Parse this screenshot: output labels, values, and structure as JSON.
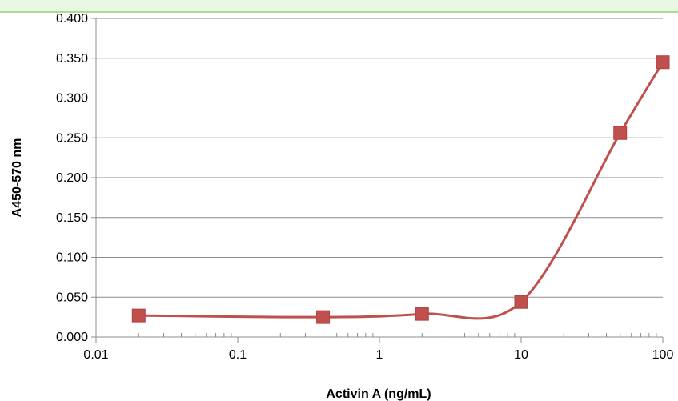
{
  "chart_data": {
    "type": "line",
    "title": "",
    "xlabel": "Activin A (ng/mL)",
    "ylabel": "A450-570 nm",
    "x_scale": "log",
    "xlim": [
      0.01,
      100
    ],
    "ylim": [
      0,
      0.4
    ],
    "grid": "horizontal",
    "legend": "none",
    "x_ticks": [
      {
        "value": 0.01,
        "label": "0.01"
      },
      {
        "value": 0.1,
        "label": "0.1"
      },
      {
        "value": 1,
        "label": "1"
      },
      {
        "value": 10,
        "label": "10"
      },
      {
        "value": 100,
        "label": "100"
      }
    ],
    "y_ticks": [
      {
        "value": 0,
        "label": "0.000"
      },
      {
        "value": 0.05,
        "label": "0.050"
      },
      {
        "value": 0.1,
        "label": "0.100"
      },
      {
        "value": 0.15,
        "label": "0.150"
      },
      {
        "value": 0.2,
        "label": "0.200"
      },
      {
        "value": 0.25,
        "label": "0.250"
      },
      {
        "value": 0.3,
        "label": "0.300"
      },
      {
        "value": 0.35,
        "label": "0.350"
      },
      {
        "value": 0.4,
        "label": "0.400"
      }
    ],
    "series": [
      {
        "color": "#c0504d",
        "marker": "square",
        "x": [
          0.02,
          0.4,
          2,
          10,
          50,
          100
        ],
        "y": [
          0.027,
          0.025,
          0.029,
          0.044,
          0.256,
          0.345
        ]
      }
    ]
  }
}
